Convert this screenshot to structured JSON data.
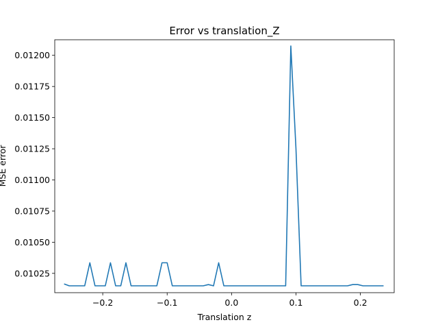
{
  "chart_data": {
    "type": "line",
    "title": "Error vs translation_Z",
    "xlabel": "Translation z",
    "ylabel": "MSE error",
    "xlim": [
      -0.2745,
      0.2525
    ],
    "ylim": [
      0.010208,
      0.010215
    ],
    "ylim_full": [
      0.010095,
      0.012125
    ],
    "grid": false,
    "legend": "none",
    "x_ticks": [
      -0.2,
      -0.1,
      0.0,
      0.1,
      0.2
    ],
    "x_tick_labels": [
      "−0.2",
      "−0.1",
      "0.0",
      "0.1",
      "0.2"
    ],
    "y_ticks": [
      0.01025,
      0.0105,
      0.01075,
      0.011,
      0.01125,
      0.0115,
      0.01175,
      0.012
    ],
    "y_tick_labels": [
      "0.01025",
      "0.01050",
      "0.01075",
      "0.01100",
      "0.01125",
      "0.01150",
      "0.01175",
      "0.01200"
    ],
    "series": [
      {
        "color": "#1f77b4",
        "x": [
          -0.26,
          -0.252,
          -0.244,
          -0.236,
          -0.228,
          -0.22,
          -0.212,
          -0.204,
          -0.196,
          -0.188,
          -0.18,
          -0.172,
          -0.164,
          -0.156,
          -0.148,
          -0.14,
          -0.132,
          -0.124,
          -0.116,
          -0.108,
          -0.1,
          -0.092,
          -0.084,
          -0.076,
          -0.068,
          -0.06,
          -0.052,
          -0.044,
          -0.036,
          -0.028,
          -0.02,
          -0.012,
          -0.004,
          0.004,
          0.012,
          0.02,
          0.028,
          0.036,
          0.044,
          0.052,
          0.06,
          0.068,
          0.076,
          0.084,
          0.092,
          0.1,
          0.108,
          0.116,
          0.124,
          0.132,
          0.14,
          0.148,
          0.156,
          0.164,
          0.172,
          0.18,
          0.188,
          0.196,
          0.204,
          0.212,
          0.22,
          0.228,
          0.236
        ],
        "values": [
          0.010165,
          0.01015,
          0.01015,
          0.01015,
          0.01015,
          0.010335,
          0.01015,
          0.01015,
          0.01015,
          0.010335,
          0.01015,
          0.01015,
          0.010335,
          0.01015,
          0.01015,
          0.01015,
          0.01015,
          0.01015,
          0.01015,
          0.010335,
          0.010335,
          0.01015,
          0.01015,
          0.01015,
          0.01015,
          0.01015,
          0.01015,
          0.01015,
          0.01016,
          0.01015,
          0.010335,
          0.01015,
          0.01015,
          0.01015,
          0.01015,
          0.01015,
          0.01015,
          0.01015,
          0.01015,
          0.01015,
          0.01015,
          0.01015,
          0.01015,
          0.01015,
          0.012075,
          0.01125,
          0.01015,
          0.01015,
          0.01015,
          0.01015,
          0.01015,
          0.01015,
          0.01015,
          0.01015,
          0.01015,
          0.01015,
          0.01016,
          0.01016,
          0.01015,
          0.01015,
          0.01015,
          0.01015,
          0.01015
        ]
      }
    ]
  }
}
